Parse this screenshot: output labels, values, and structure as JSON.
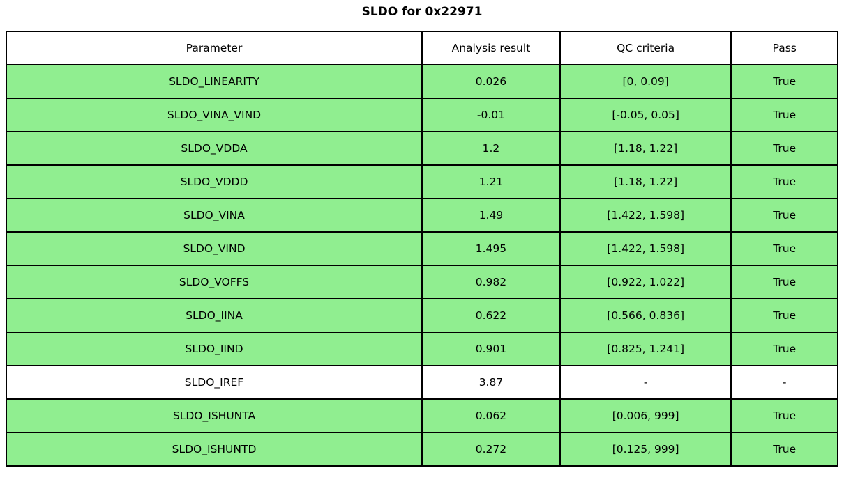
{
  "title": "SLDO for 0x22971",
  "colors": {
    "pass_row_bg": "#90EE90",
    "neutral_row_bg": "#FFFFFF",
    "border": "#000000",
    "text": "#000000"
  },
  "chart_data": {
    "type": "table",
    "title": "SLDO for 0x22971",
    "columns": [
      "Parameter",
      "Analysis result",
      "QC criteria",
      "Pass"
    ],
    "rows": [
      {
        "parameter": "SLDO_LINEARITY",
        "result": "0.026",
        "criteria": "[0, 0.09]",
        "pass": "True",
        "highlight": true
      },
      {
        "parameter": "SLDO_VINA_VIND",
        "result": "-0.01",
        "criteria": "[-0.05, 0.05]",
        "pass": "True",
        "highlight": true
      },
      {
        "parameter": "SLDO_VDDA",
        "result": "1.2",
        "criteria": "[1.18, 1.22]",
        "pass": "True",
        "highlight": true
      },
      {
        "parameter": "SLDO_VDDD",
        "result": "1.21",
        "criteria": "[1.18, 1.22]",
        "pass": "True",
        "highlight": true
      },
      {
        "parameter": "SLDO_VINA",
        "result": "1.49",
        "criteria": "[1.422, 1.598]",
        "pass": "True",
        "highlight": true
      },
      {
        "parameter": "SLDO_VIND",
        "result": "1.495",
        "criteria": "[1.422, 1.598]",
        "pass": "True",
        "highlight": true
      },
      {
        "parameter": "SLDO_VOFFS",
        "result": "0.982",
        "criteria": "[0.922, 1.022]",
        "pass": "True",
        "highlight": true
      },
      {
        "parameter": "SLDO_IINA",
        "result": "0.622",
        "criteria": "[0.566, 0.836]",
        "pass": "True",
        "highlight": true
      },
      {
        "parameter": "SLDO_IIND",
        "result": "0.901",
        "criteria": "[0.825, 1.241]",
        "pass": "True",
        "highlight": true
      },
      {
        "parameter": "SLDO_IREF",
        "result": "3.87",
        "criteria": "-",
        "pass": "-",
        "highlight": false
      },
      {
        "parameter": "SLDO_ISHUNTA",
        "result": "0.062",
        "criteria": "[0.006, 999]",
        "pass": "True",
        "highlight": true
      },
      {
        "parameter": "SLDO_ISHUNTD",
        "result": "0.272",
        "criteria": "[0.125, 999]",
        "pass": "True",
        "highlight": true
      }
    ]
  }
}
